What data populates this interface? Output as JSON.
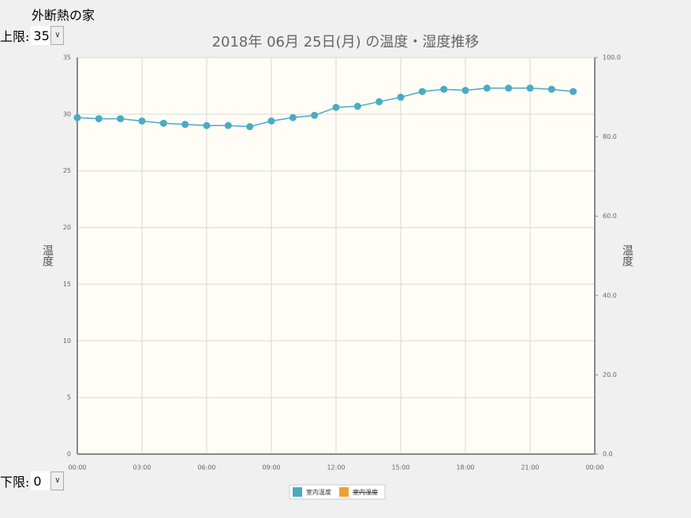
{
  "header": {
    "title": "外断熱の家"
  },
  "controls": {
    "upper_label": "上限:",
    "upper_value": "35",
    "lower_label": "下限:",
    "lower_value": "0"
  },
  "chart_data": {
    "type": "line",
    "title": "2018年 06月 25日(月) の温度・湿度推移",
    "y_label": "温度",
    "y2_label": "温度",
    "x": [
      0,
      1,
      2,
      3,
      4,
      5,
      6,
      7,
      8,
      9,
      10,
      11,
      12,
      13,
      14,
      15,
      16,
      17,
      18,
      19,
      20,
      21,
      22,
      23
    ],
    "xlim": [
      0,
      24
    ],
    "xticks": [
      {
        "value": 0,
        "label": "00:00"
      },
      {
        "value": 3,
        "label": "03:00"
      },
      {
        "value": 6,
        "label": "06:00"
      },
      {
        "value": 9,
        "label": "09:00"
      },
      {
        "value": 12,
        "label": "12:00"
      },
      {
        "value": 15,
        "label": "15:00"
      },
      {
        "value": 18,
        "label": "18:00"
      },
      {
        "value": 21,
        "label": "21:00"
      },
      {
        "value": 24,
        "label": "00:00"
      }
    ],
    "ylim": [
      0,
      35
    ],
    "yticks": [
      0,
      5,
      10,
      15,
      20,
      25,
      30,
      35
    ],
    "y2lim": [
      0,
      100
    ],
    "y2ticks": [
      {
        "value": 0,
        "label": "0.0"
      },
      {
        "value": 20,
        "label": "20.0"
      },
      {
        "value": 40,
        "label": "40.0"
      },
      {
        "value": 60,
        "label": "60.0"
      },
      {
        "value": 80,
        "label": "80.0"
      },
      {
        "value": 100,
        "label": "100.0"
      }
    ],
    "grid": true,
    "legend": "bottom",
    "series": [
      {
        "name": "室内温度",
        "color": "#4aabc4",
        "values": [
          29.7,
          29.6,
          29.6,
          29.4,
          29.2,
          29.1,
          29.0,
          29.0,
          28.9,
          29.4,
          29.7,
          29.9,
          30.6,
          30.7,
          31.1,
          31.5,
          32.0,
          32.2,
          32.1,
          32.3,
          32.3,
          32.3,
          32.2,
          32.0
        ]
      },
      {
        "name": "室内湿度",
        "color": "#f0a030",
        "axis": "y2",
        "hidden": true,
        "values": [
          null,
          null,
          null,
          null,
          null,
          null,
          null,
          null,
          null,
          null,
          null,
          null,
          null,
          null,
          null,
          null,
          null,
          null,
          null,
          null,
          null,
          null,
          null,
          null
        ]
      }
    ]
  }
}
